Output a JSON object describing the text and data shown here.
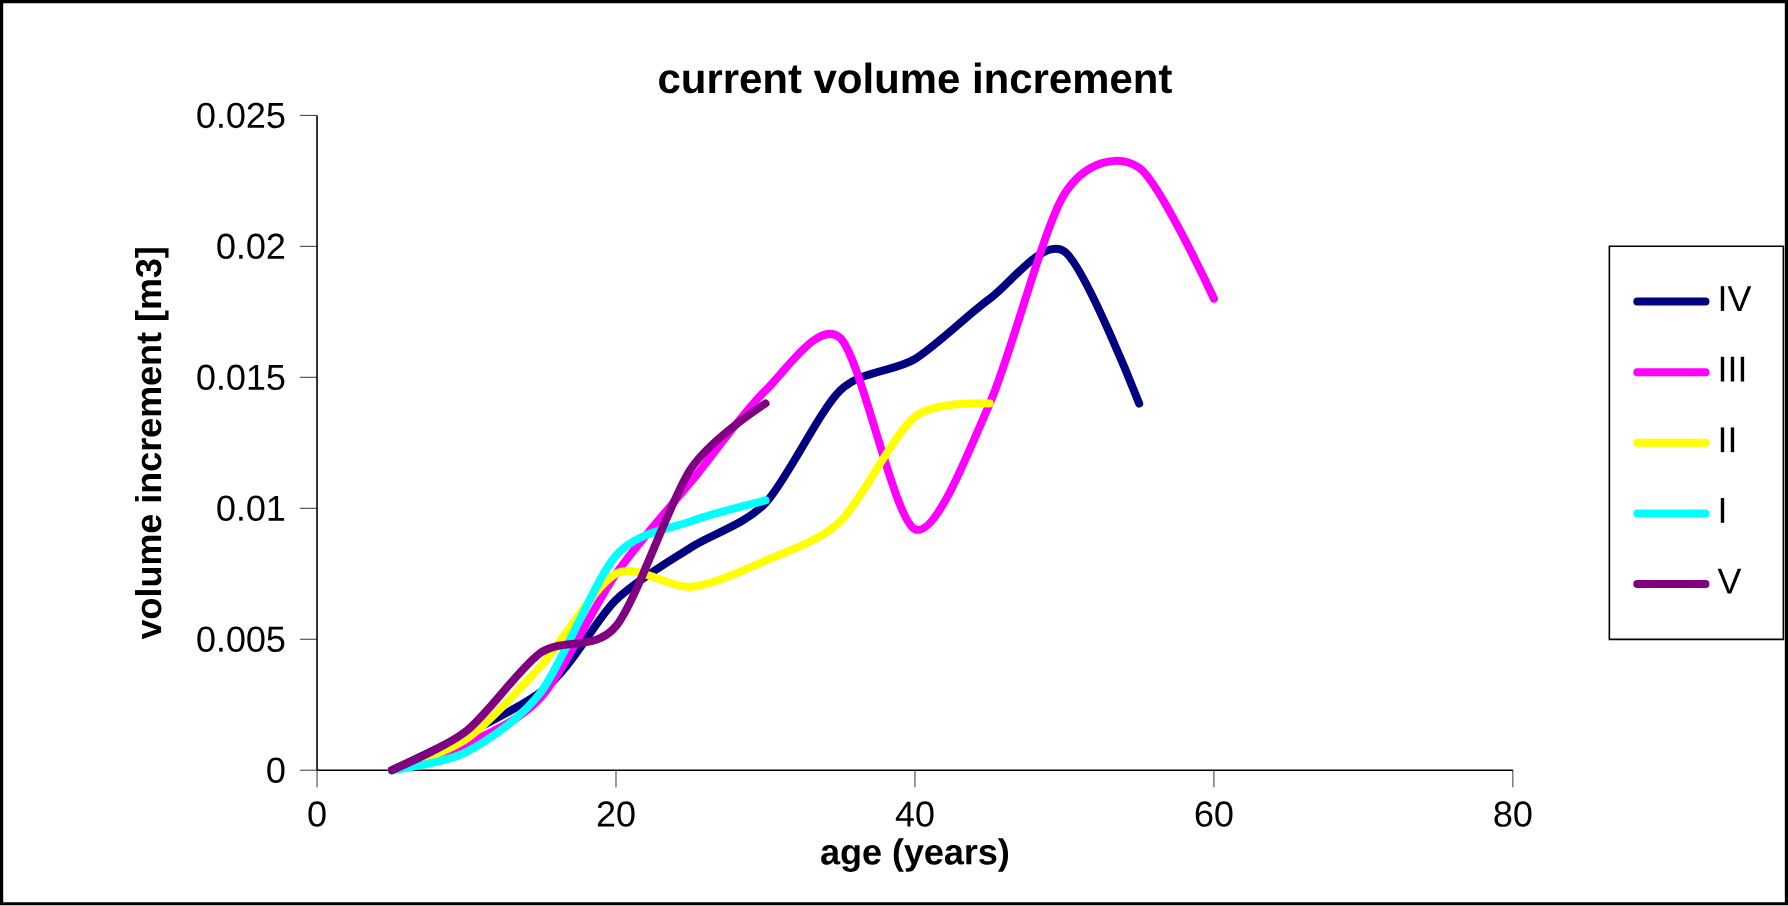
{
  "chart_data": {
    "type": "line",
    "title": "current volume increment",
    "xlabel": "age (years)",
    "ylabel": "volume increment [m3]",
    "x": [
      5,
      10,
      15,
      20,
      25,
      30,
      35,
      40,
      45,
      50,
      55,
      60
    ],
    "xlim": [
      0,
      80
    ],
    "xticks": [
      0,
      20,
      40,
      60,
      80
    ],
    "ylim": [
      0,
      0.025
    ],
    "yticks": [
      0,
      0.005,
      0.01,
      0.015,
      0.02,
      0.025
    ],
    "legend": "right",
    "grid": false,
    "marker": "none",
    "line_style": "solid",
    "series": [
      {
        "name": "IV",
        "color": "#000080",
        "values": [
          0,
          null,
          0.003,
          0.0065,
          0.0085,
          0.0102,
          0.0145,
          0.0157,
          0.018,
          0.0198,
          0.014,
          null
        ]
      },
      {
        "name": "III",
        "color": "#ff00ff",
        "values": [
          0,
          0.001,
          0.0028,
          0.0075,
          0.011,
          0.0145,
          0.0165,
          0.0092,
          0.014,
          0.022,
          0.023,
          0.018
        ]
      },
      {
        "name": "II",
        "color": "#ffff00",
        "values": [
          0,
          0.0012,
          0.004,
          0.0075,
          0.007,
          0.008,
          0.0095,
          0.0135,
          0.014,
          null,
          null,
          null
        ]
      },
      {
        "name": "I",
        "color": "#00ffff",
        "values": [
          0,
          0.0007,
          0.003,
          0.0082,
          0.0095,
          0.0103,
          null,
          null,
          null,
          null,
          null,
          null
        ]
      },
      {
        "name": "V",
        "color": "#800080",
        "values": [
          0,
          0.0015,
          0.0045,
          0.0055,
          0.0115,
          0.014,
          null,
          null,
          null,
          null,
          null,
          null
        ]
      }
    ]
  }
}
